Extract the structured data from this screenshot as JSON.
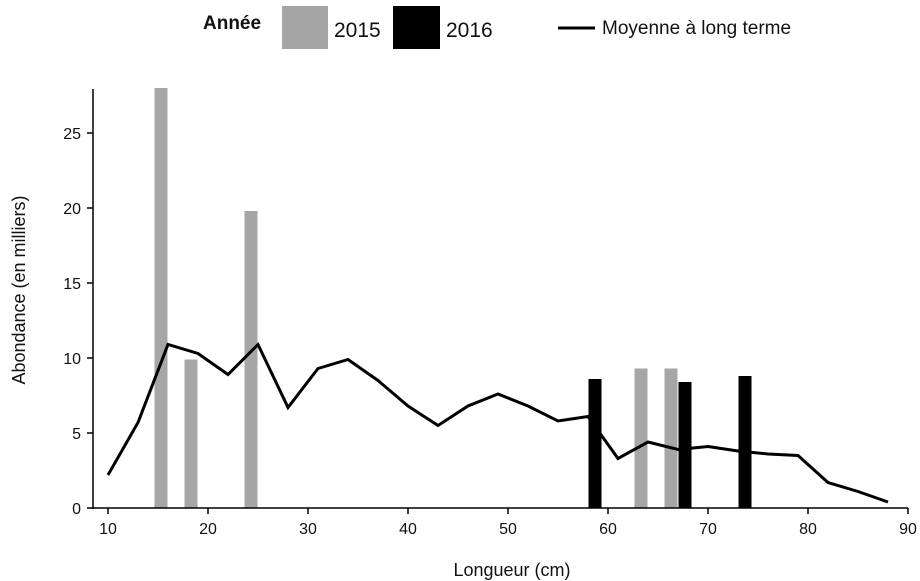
{
  "chart_data": {
    "type": "bar",
    "xlabel": "Longueur (cm)",
    "ylabel": "Abondance (en milliers)",
    "xlim": [
      8.5,
      90
    ],
    "ylim": [
      0,
      28
    ],
    "xticks": [
      10,
      20,
      30,
      40,
      50,
      60,
      70,
      80,
      90
    ],
    "yticks": [
      0,
      5,
      10,
      15,
      20,
      25
    ],
    "grid": false,
    "legend": {
      "title": "Année",
      "placement": "top-center",
      "entries": [
        "2015",
        "2016",
        "Moyenne à long terme"
      ]
    },
    "series": [
      {
        "name": "2015",
        "type": "bar",
        "color": "#a6a6a6",
        "points": [
          {
            "x": 15.3,
            "y": 28.0
          },
          {
            "x": 18.3,
            "y": 9.9
          },
          {
            "x": 24.3,
            "y": 19.8
          },
          {
            "x": 63.3,
            "y": 9.3
          },
          {
            "x": 66.3,
            "y": 9.3
          }
        ]
      },
      {
        "name": "2016",
        "type": "bar",
        "color": "#000000",
        "points": [
          {
            "x": 58.7,
            "y": 8.6
          },
          {
            "x": 67.7,
            "y": 8.4
          },
          {
            "x": 73.7,
            "y": 8.8
          }
        ]
      },
      {
        "name": "Moyenne à long terme",
        "type": "line",
        "color": "#000000",
        "points": [
          {
            "x": 10,
            "y": 2.2
          },
          {
            "x": 13,
            "y": 5.7
          },
          {
            "x": 16,
            "y": 10.9
          },
          {
            "x": 19,
            "y": 10.3
          },
          {
            "x": 22,
            "y": 8.9
          },
          {
            "x": 25,
            "y": 10.9
          },
          {
            "x": 28,
            "y": 6.7
          },
          {
            "x": 31,
            "y": 9.3
          },
          {
            "x": 34,
            "y": 9.9
          },
          {
            "x": 37,
            "y": 8.5
          },
          {
            "x": 40,
            "y": 6.8
          },
          {
            "x": 43,
            "y": 5.5
          },
          {
            "x": 46,
            "y": 6.8
          },
          {
            "x": 49,
            "y": 7.6
          },
          {
            "x": 52,
            "y": 6.8
          },
          {
            "x": 55,
            "y": 5.8
          },
          {
            "x": 58,
            "y": 6.1
          },
          {
            "x": 61,
            "y": 3.3
          },
          {
            "x": 64,
            "y": 4.4
          },
          {
            "x": 67,
            "y": 3.9
          },
          {
            "x": 70,
            "y": 4.1
          },
          {
            "x": 73,
            "y": 3.8
          },
          {
            "x": 76,
            "y": 3.6
          },
          {
            "x": 79,
            "y": 3.5
          },
          {
            "x": 82,
            "y": 1.7
          },
          {
            "x": 85,
            "y": 1.1
          },
          {
            "x": 88,
            "y": 0.4
          }
        ]
      }
    ]
  }
}
